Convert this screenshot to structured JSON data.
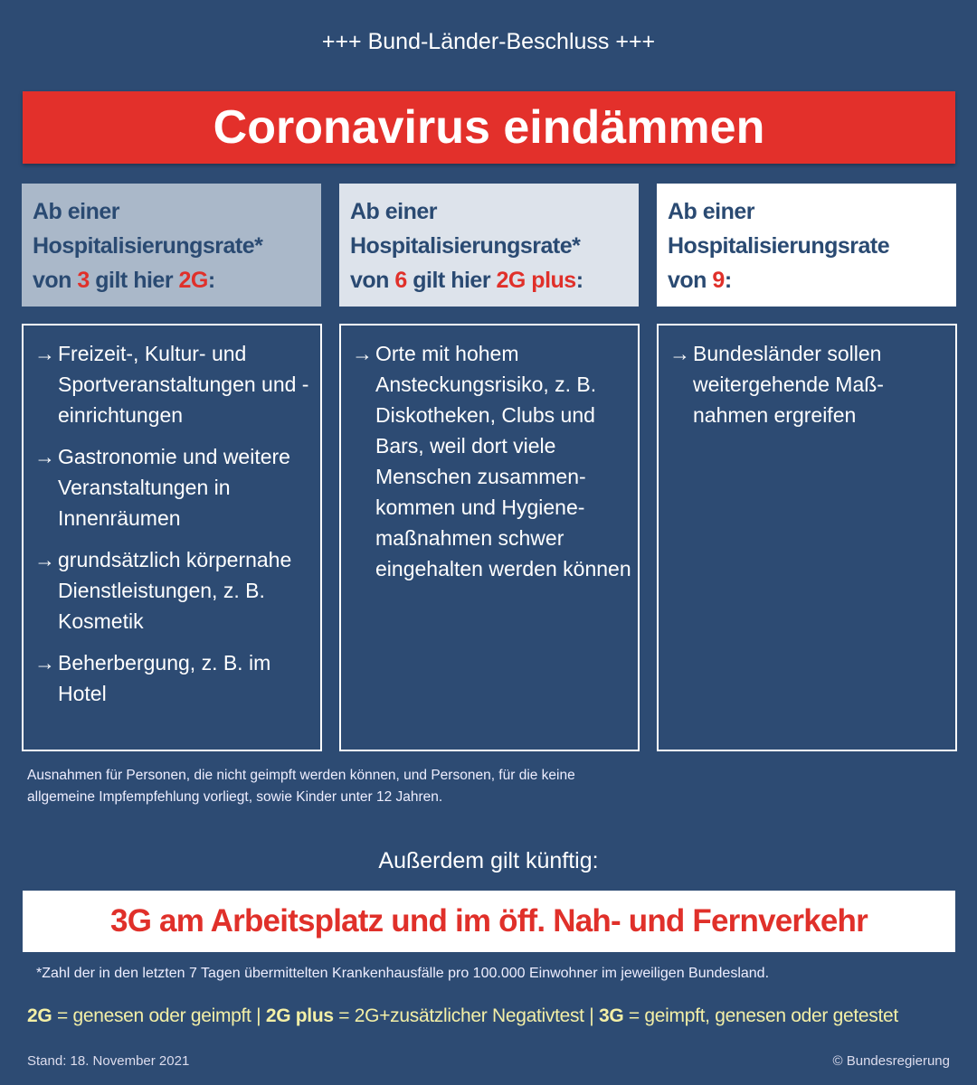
{
  "kicker": "+++ Bund-Länder-Beschluss +++",
  "title": "Coronavirus eindämmen",
  "columns": [
    {
      "l1": "Ab einer",
      "l2": "Hospitalisierungsrate*",
      "pre": "von ",
      "num": "3",
      "mid": " gilt hier ",
      "rule": "2G",
      "colon": ":",
      "bg": "#aab8c9",
      "items": [
        "Freizeit-, Kultur- und Sportveranstaltungen und -einrichtungen",
        "Gastronomie und weitere Veranstaltungen in Innenräumen",
        "grundsätzlich körpernahe Dienstleistungen, z. B. Kosmetik",
        "Beherbergung, z. B. im Hotel"
      ]
    },
    {
      "l1": "Ab einer",
      "l2": "Hospitalisierungsrate*",
      "pre": "von ",
      "num": "6",
      "mid": " gilt hier ",
      "rule": "2G plus",
      "colon": ":",
      "bg": "#dde3eb",
      "items": [
        "Orte mit hohem Ansteckungsrisiko, z. B. Diskotheken, Clubs und Bars, weil dort viele Menschen zusammen-kommen und Hygiene-maßnahmen schwer eingehalten werden können"
      ]
    },
    {
      "l1": "Ab einer",
      "l2": "Hospitalisierungsrate",
      "pre": "von ",
      "num": "9",
      "mid": "",
      "rule": "",
      "colon": ":",
      "bg": "#ffffff",
      "items": [
        "Bundesländer sollen weitergehende Maß-nahmen ergreifen"
      ]
    }
  ],
  "note_line1": "Ausnahmen für Personen, die nicht geimpft werden können, und Personen, für die keine",
  "note_line2": "allgemeine Impfempfehlung vorliegt, sowie Kinder unter 12 Jahren.",
  "also": "Außerdem gilt künftig:",
  "workplace": "3G am Arbeitsplatz und im öff. Nah- und Fernverkehr",
  "footnote": "*Zahl der in den letzten 7 Tagen übermittelten Krankenhausfälle pro 100.000 Einwohner im jeweiligen Bundesland.",
  "legend": {
    "t1": "2G",
    "d1": " = genesen oder geimpft | ",
    "t2": "2G plus",
    "d2": " = 2G+zusätzlicher Negativtest | ",
    "t3": "3G",
    "d3": " = geimpft, genesen oder getestet"
  },
  "stand": "Stand: 18. November 2021",
  "copyright": "© Bundesregierung",
  "colors": {
    "background": "#2d4b73",
    "red": "#e3302b",
    "yellow": "#f3efa6",
    "heading_text": "#2a4a72"
  }
}
